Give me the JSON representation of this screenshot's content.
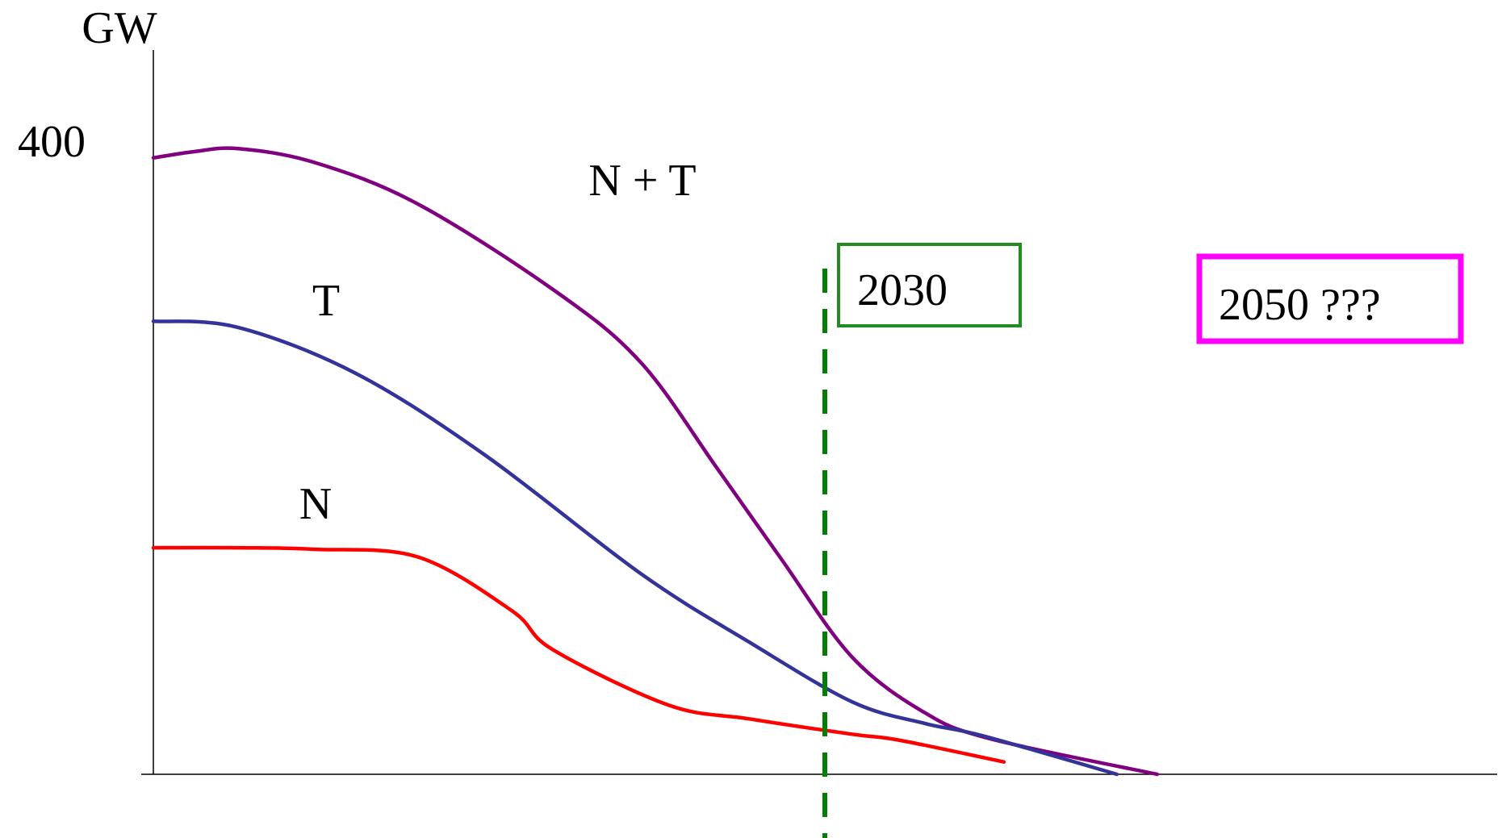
{
  "chart_data": {
    "type": "line",
    "ylabel": "GW",
    "yticks": [
      {
        "value": 400,
        "label": "400"
      }
    ],
    "ylim": [
      0,
      470
    ],
    "xlim": [
      0,
      1000
    ],
    "grid": false,
    "series": [
      {
        "name": "N + T",
        "color": "#800080",
        "points": [
          [
            0,
            400
          ],
          [
            30,
            404
          ],
          [
            63,
            406
          ],
          [
            120,
            397
          ],
          [
            197,
            370
          ],
          [
            300,
            313
          ],
          [
            363,
            267
          ],
          [
            420,
            198
          ],
          [
            467,
            140
          ],
          [
            520,
            76
          ],
          [
            574,
            40
          ],
          [
            623,
            23
          ],
          [
            747,
            0
          ]
        ]
      },
      {
        "name": "T",
        "color": "#333399",
        "points": [
          [
            0,
            294
          ],
          [
            63,
            290
          ],
          [
            151,
            260
          ],
          [
            247,
            207
          ],
          [
            363,
            130
          ],
          [
            443,
            86
          ],
          [
            520,
            47
          ],
          [
            574,
            33
          ],
          [
            617,
            25
          ],
          [
            717,
            0
          ]
        ]
      },
      {
        "name": "N",
        "color": "#ff0000",
        "points": [
          [
            0,
            147
          ],
          [
            63,
            147
          ],
          [
            120,
            146
          ],
          [
            197,
            141
          ],
          [
            267,
            106
          ],
          [
            297,
            81
          ],
          [
            383,
            45
          ],
          [
            443,
            36
          ],
          [
            520,
            26
          ],
          [
            556,
            22
          ],
          [
            633,
            8
          ]
        ]
      }
    ],
    "annotations": [
      {
        "text": "2030",
        "marker_x": 430,
        "marker_color": "#008000",
        "box_color": "#228b22"
      },
      {
        "text": "2050 ???",
        "box_color": "#ff00ff"
      }
    ]
  }
}
